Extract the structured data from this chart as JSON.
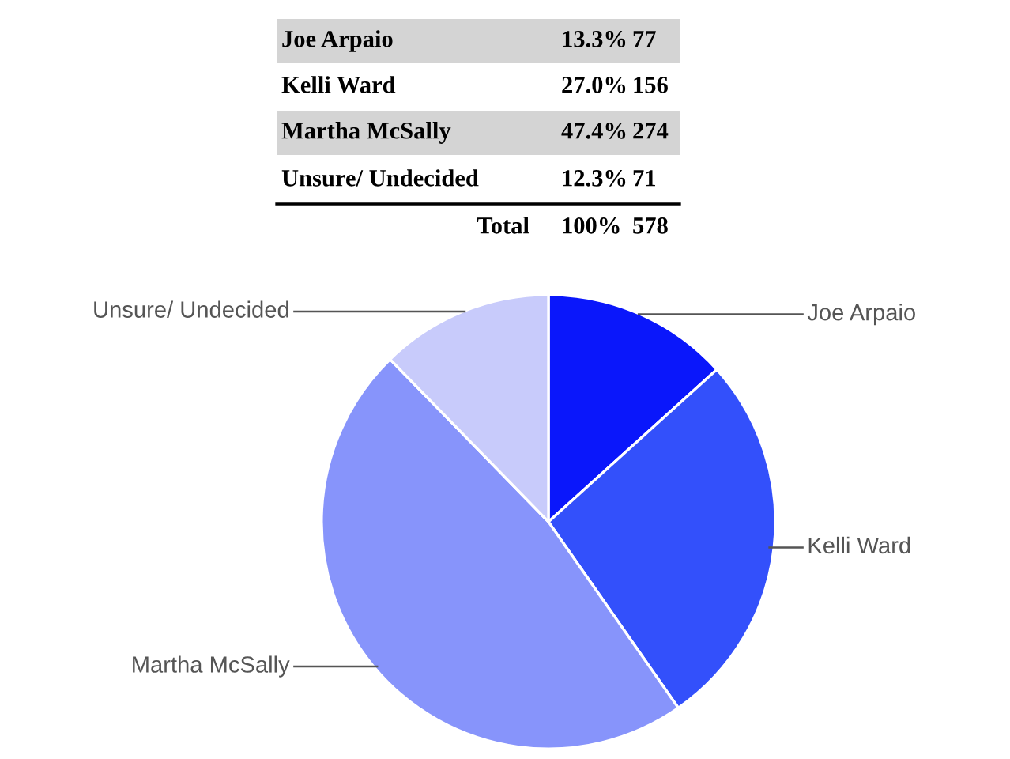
{
  "chart_data": [
    {
      "type": "other",
      "categories": [
        "Joe Arpaio",
        "Kelli Ward",
        "Martha McSally",
        "Unsure/ Undecided"
      ],
      "series": [
        {
          "values": [
            13.3,
            27.0,
            47.4,
            12.3
          ],
          "value_labels": [
            "13.3%",
            "27.0%",
            "47.4%",
            "12.3%"
          ]
        },
        {
          "values": [
            77,
            156,
            274,
            71
          ],
          "value_labels": [
            "77",
            "156",
            "274",
            "71"
          ]
        }
      ],
      "totals": [
        "Total",
        "100%",
        "578"
      ]
    },
    {
      "type": "pie",
      "categories": [
        "Joe Arpaio",
        "Kelli Ward",
        "Martha McSally",
        "Unsure/ Undecided"
      ],
      "values": [
        13.3,
        27.0,
        47.4,
        12.3
      ],
      "colors": [
        "#0a17fb",
        "#3350fb",
        "#8794fb",
        "#c8cbfb"
      ]
    }
  ]
}
